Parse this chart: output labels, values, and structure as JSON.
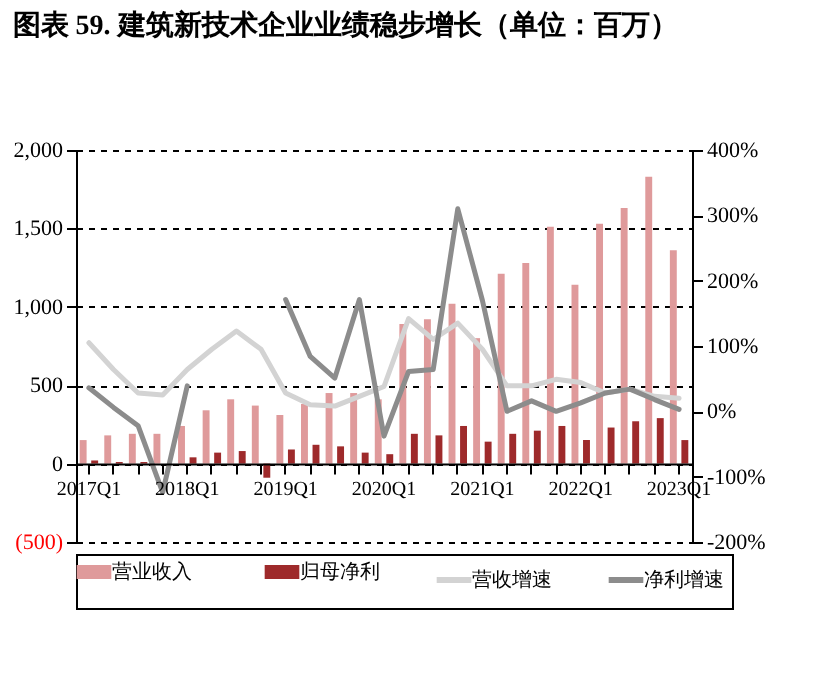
{
  "chart_data": {
    "type": "bar",
    "title": "图表 59. 建筑新技术企业业绩稳步增长（单位：百万）",
    "categories": [
      "2017Q1",
      null,
      null,
      null,
      "2018Q1",
      null,
      null,
      null,
      "2019Q1",
      null,
      null,
      null,
      "2020Q1",
      null,
      null,
      null,
      "2021Q1",
      null,
      null,
      null,
      "2022Q1",
      null,
      null,
      null,
      "2023Q1"
    ],
    "ylim": [
      -500,
      2000
    ],
    "yticks": [
      {
        "value": -500,
        "label": "(500)"
      },
      0,
      500,
      {
        "value": 1000,
        "label": "1,000"
      },
      {
        "value": 1500,
        "label": "1,500"
      },
      {
        "value": 2000,
        "label": "2,000"
      }
    ],
    "y2lim": [
      -200,
      400
    ],
    "y2ticks": [
      {
        "value": -200,
        "label": "-200%"
      },
      {
        "value": -100,
        "label": "-100%"
      },
      {
        "value": 0,
        "label": "0%"
      },
      {
        "value": 100,
        "label": "100%"
      },
      {
        "value": 200,
        "label": "200%"
      },
      {
        "value": 300,
        "label": "300%"
      },
      {
        "value": 400,
        "label": "400%"
      }
    ],
    "grid": "y",
    "legend": "bottom",
    "series": [
      {
        "name": "营业收入",
        "color": "#df9a9b",
        "values": [
          150,
          180,
          190,
          190,
          240,
          340,
          410,
          370,
          310,
          380,
          450,
          450,
          410,
          890,
          920,
          1020,
          800,
          1210,
          1280,
          1510,
          1140,
          1530,
          1630,
          1830,
          1360
        ]
      },
      {
        "name": "归母净利",
        "color": "#9e2a2b",
        "values": [
          20,
          10,
          10,
          null,
          40,
          70,
          80,
          -90,
          90,
          120,
          110,
          70,
          60,
          190,
          180,
          240,
          140,
          190,
          210,
          240,
          150,
          230,
          270,
          290,
          150
        ]
      },
      {
        "name": "营收增速",
        "type": "line",
        "axis": "y2",
        "color": "#d3d3d3",
        "values": [
          105,
          64,
          28,
          25,
          64,
          95,
          123,
          95,
          28,
          10,
          8,
          23,
          38,
          142,
          110,
          135,
          95,
          39,
          39,
          49,
          44,
          28,
          34,
          23,
          20
        ]
      },
      {
        "name": "净利增速",
        "type": "line",
        "axis": "y2",
        "color": "#8c8c8c",
        "values": [
          36,
          6,
          -22,
          -124,
          39,
          null,
          null,
          null,
          171,
          84,
          51,
          171,
          -38,
          61,
          64,
          310,
          170,
          0,
          16,
          0,
          13,
          28,
          34,
          18,
          3
        ]
      }
    ]
  }
}
